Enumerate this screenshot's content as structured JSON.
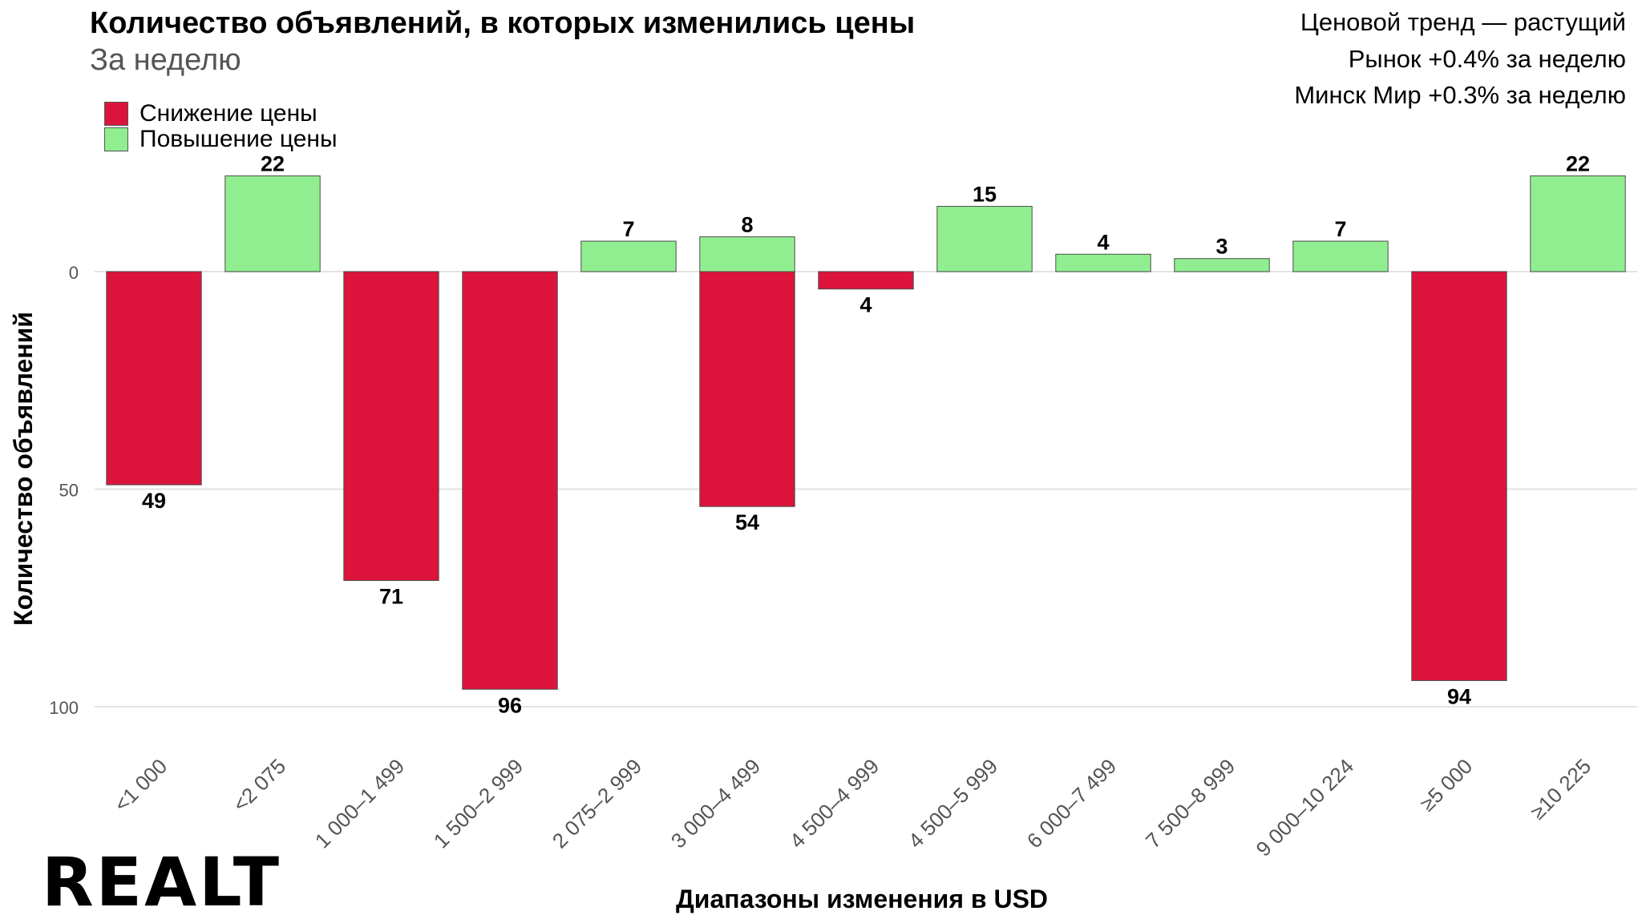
{
  "header": {
    "title": "Количество объявлений, в которых изменились цены",
    "subtitle": "За неделю"
  },
  "notes": {
    "trend": "Ценовой тренд — растущий",
    "market": "Рынок +0.4% за неделю",
    "district": "Минск Мир +0.3% за неделю"
  },
  "legend": {
    "decrease": "Снижение цены",
    "increase": "Повышение цены"
  },
  "colors": {
    "decrease": "#DC143C",
    "increase": "#90EE90",
    "grid": "#E3E3E3"
  },
  "logo": "REALT",
  "chart_data": {
    "type": "bar",
    "title": "Количество объявлений, в которых изменились цены",
    "subtitle": "За неделю",
    "xlabel": "Диапазоны изменения в USD",
    "ylabel": "Количество объявлений",
    "categories": [
      "<1 000",
      "<2 075",
      "1 000–1 499",
      "1 500–2 999",
      "2 075–2 999",
      "3 000–4 499",
      "4 500–4 999",
      "4 500–5 999",
      "6 000–7 499",
      "7 500–8 999",
      "9 000–10 224",
      "≥5 000",
      "≥10 225"
    ],
    "series": [
      {
        "name": "Снижение цены",
        "direction": "down",
        "values": [
          49,
          null,
          71,
          96,
          null,
          54,
          4,
          null,
          null,
          null,
          null,
          94,
          null
        ]
      },
      {
        "name": "Повышение цены",
        "direction": "up",
        "values": [
          null,
          22,
          null,
          null,
          7,
          8,
          null,
          15,
          4,
          3,
          7,
          null,
          22
        ]
      }
    ],
    "yticks": [
      0,
      50,
      100
    ],
    "ylim": [
      -22,
      106
    ],
    "grid": true,
    "legend_position": "top-left"
  }
}
